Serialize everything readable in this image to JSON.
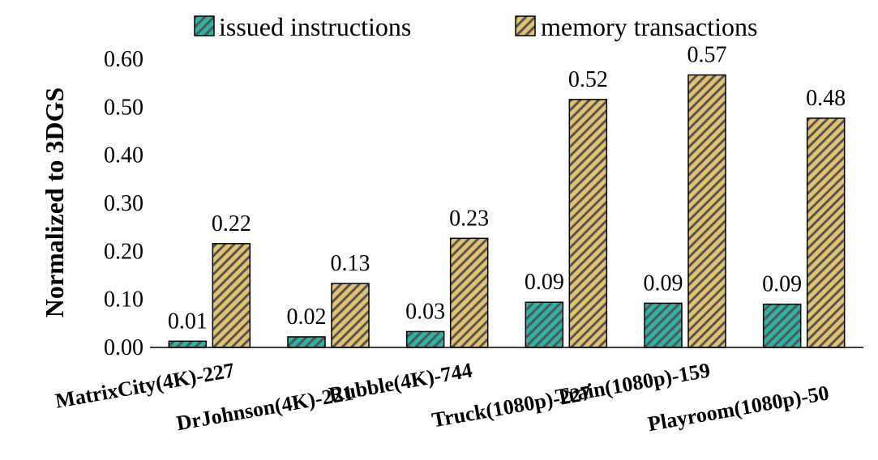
{
  "chart_data": {
    "type": "bar",
    "title": "",
    "xlabel": "",
    "ylabel": "Normalized to 3DGS",
    "ylim": [
      0,
      0.6
    ],
    "yticks": [
      "0.00",
      "0.10",
      "0.20",
      "0.30",
      "0.40",
      "0.50",
      "0.60"
    ],
    "grid": false,
    "legend_position": "top",
    "categories": [
      "MatrixCity(4K)-227",
      "DrJohnson(4K)-221",
      "Rubble(4K)-744",
      "Truck(1080p)-227",
      "Train(1080p)-159",
      "Playroom(1080p)-50"
    ],
    "series": [
      {
        "name": "issued instructions",
        "color": "#2ab3a6",
        "values": [
          0.013,
          0.022,
          0.033,
          0.094,
          0.092,
          0.09
        ],
        "labels": [
          "0.01",
          "0.02",
          "0.03",
          "0.09",
          "0.09",
          "0.09"
        ]
      },
      {
        "name": "memory transactions",
        "color": "#e3c16f",
        "values": [
          0.216,
          0.133,
          0.227,
          0.516,
          0.567,
          0.477
        ],
        "labels": [
          "0.22",
          "0.13",
          "0.23",
          "0.52",
          "0.57",
          "0.48"
        ]
      }
    ]
  }
}
